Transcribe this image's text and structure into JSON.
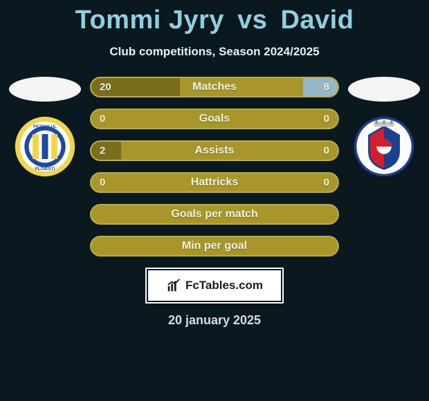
{
  "title": {
    "player1": "Tommi Jyry",
    "vs": "vs",
    "player2": "David"
  },
  "subtitle": "Club competitions, Season 2024/2025",
  "stats": {
    "rows": [
      {
        "label": "Matches",
        "left_val": "20",
        "right_val": "8",
        "left_pct": 36,
        "right_pct": 14
      },
      {
        "label": "Goals",
        "left_val": "0",
        "right_val": "0",
        "left_pct": 0,
        "right_pct": 0
      },
      {
        "label": "Assists",
        "left_val": "2",
        "right_val": "0",
        "left_pct": 12,
        "right_pct": 0
      },
      {
        "label": "Hattricks",
        "left_val": "0",
        "right_val": "0",
        "left_pct": 0,
        "right_pct": 0
      },
      {
        "label": "Goals per match",
        "left_val": "",
        "right_val": "",
        "left_pct": 0,
        "right_pct": 0
      },
      {
        "label": "Min per goal",
        "left_val": "",
        "right_val": "",
        "left_pct": 0,
        "right_pct": 0
      }
    ],
    "bar_bg": "#a8962b",
    "bar_border": "#bfae3a",
    "fill_left_color": "#7a6d1c",
    "fill_right_color": "#95b7c7",
    "label_color": "#eef3e2"
  },
  "left_club": {
    "name": "Petrolul Ploiesti",
    "ring_colors": [
      "#f2d54a",
      "#ffffff",
      "#1e4aa0"
    ],
    "center_stripes": [
      "#f2d54a",
      "#1e4aa0"
    ]
  },
  "right_club": {
    "name": "FC Botosani",
    "shield_bg": "#ffffff",
    "shield_border": "#1c3f8f",
    "accent": "#d21f2a"
  },
  "brand": {
    "text": "FcTables.com"
  },
  "date": "20 january 2025",
  "page_bg": "#0a1820"
}
